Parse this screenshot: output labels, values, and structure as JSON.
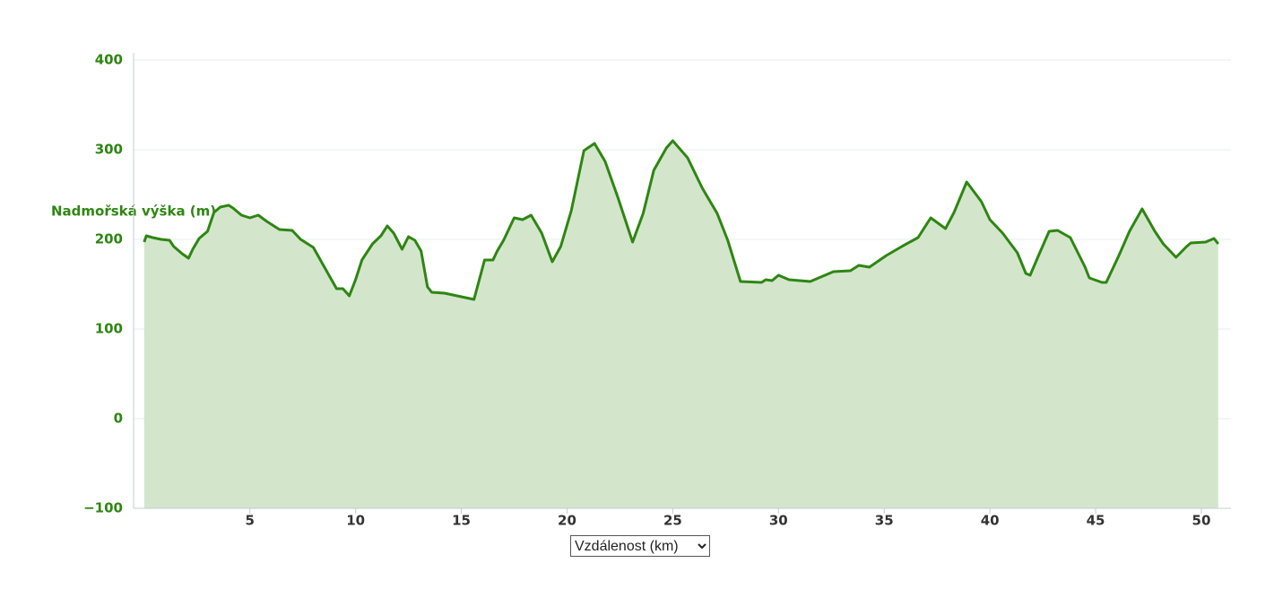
{
  "chart_data": {
    "type": "area",
    "ylabel": "Nadmořská výška (m)",
    "xlabel": "Vzdálenost (km)",
    "color": "#2e8612",
    "area_color": "#d3e6cc",
    "grid": true,
    "xlim": [
      -0.5,
      51.4
    ],
    "xticks": [
      5,
      10,
      15,
      20,
      25,
      30,
      35,
      40,
      45,
      50
    ],
    "ylim": [
      -100,
      400
    ],
    "yticks": [
      {
        "value": -100,
        "label": "−100"
      },
      0,
      100,
      200,
      300,
      400
    ],
    "x": [
      0,
      0.1,
      0.4,
      0.8,
      1.2,
      1.4,
      1.8,
      2.1,
      2.3,
      2.6,
      3.0,
      3.3,
      3.6,
      4.0,
      4.2,
      4.6,
      5.0,
      5.4,
      5.8,
      6.4,
      7.0,
      7.4,
      8.0,
      8.5,
      9.1,
      9.4,
      9.7,
      10.0,
      10.3,
      10.8,
      11.2,
      11.5,
      11.8,
      12.2,
      12.5,
      12.8,
      13.1,
      13.4,
      13.6,
      14.2,
      14.8,
      15.4,
      15.6,
      16.1,
      16.5,
      16.7,
      17.0,
      17.5,
      17.9,
      18.3,
      18.8,
      19.3,
      19.7,
      20.2,
      20.8,
      21.3,
      21.8,
      22.4,
      23.1,
      23.6,
      24.1,
      24.7,
      25.0,
      25.7,
      26.4,
      27.1,
      27.6,
      28.2,
      29.2,
      29.4,
      29.7,
      30.0,
      30.5,
      31.5,
      31.8,
      32.6,
      33.4,
      33.8,
      34.3,
      35.1,
      35.9,
      36.6,
      37.2,
      37.9,
      38.3,
      38.9,
      39.6,
      40.0,
      40.6,
      41.3,
      41.7,
      41.9,
      42.3,
      42.8,
      43.2,
      43.8,
      44.5,
      44.7,
      45.3,
      45.5,
      46.1,
      46.6,
      47.2,
      47.8,
      48.2,
      48.8,
      49.3,
      49.5,
      50.2,
      50.6,
      50.8
    ],
    "values": [
      197,
      204,
      202,
      200,
      199,
      192,
      184,
      179,
      189,
      201,
      209,
      230,
      236,
      238,
      235,
      227,
      224,
      227,
      220,
      211,
      210,
      200,
      191,
      170,
      145,
      145,
      137,
      155,
      177,
      195,
      204,
      215,
      207,
      189,
      203,
      199,
      187,
      147,
      141,
      140,
      137,
      134,
      133,
      177,
      177,
      187,
      199,
      224,
      222,
      227,
      207,
      175,
      192,
      232,
      299,
      307,
      287,
      247,
      197,
      229,
      277,
      302,
      310,
      291,
      257,
      229,
      199,
      153,
      152,
      155,
      154,
      160,
      155,
      153,
      156,
      164,
      165,
      171,
      169,
      182,
      193,
      202,
      224,
      212,
      230,
      264,
      242,
      222,
      207,
      185,
      162,
      160,
      182,
      209,
      210,
      202,
      169,
      157,
      152,
      152,
      182,
      209,
      234,
      209,
      195,
      180,
      192,
      196,
      197,
      201,
      195
    ]
  }
}
